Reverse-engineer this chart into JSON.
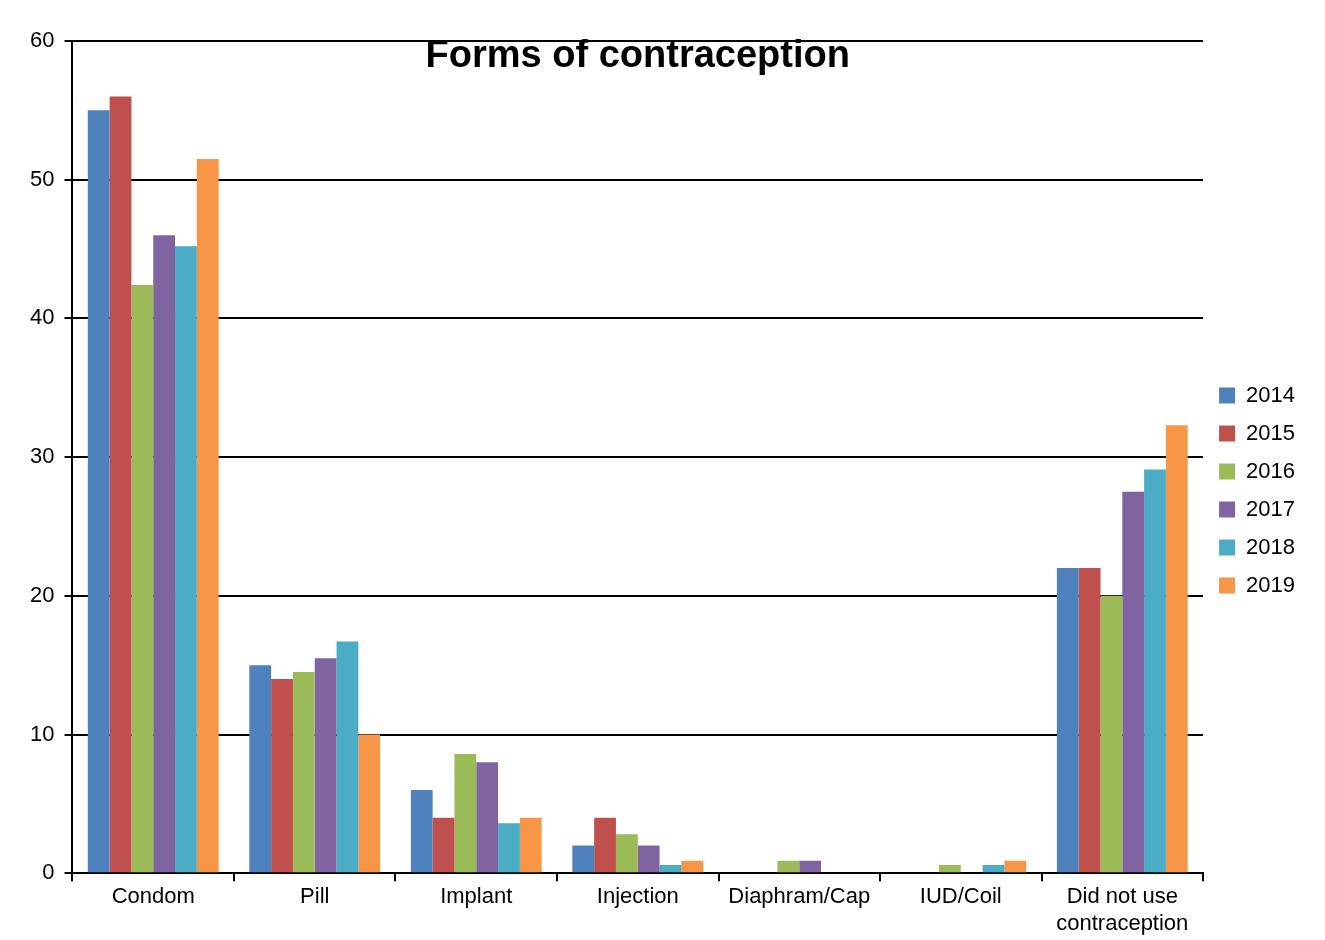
{
  "chart_data": {
    "type": "bar",
    "title": "Forms of contraception",
    "categories": [
      "Condom",
      "Pill",
      "Implant",
      "Injection",
      "Diaphram/Cap",
      "IUD/Coil",
      "Did not use contraception"
    ],
    "series": [
      {
        "name": "2014",
        "color": "#4f81bd",
        "values": [
          55,
          15,
          6,
          2,
          null,
          null,
          22
        ]
      },
      {
        "name": "2015",
        "color": "#c0504d",
        "values": [
          56,
          14,
          4,
          4,
          null,
          null,
          22
        ]
      },
      {
        "name": "2016",
        "color": "#9bbb59",
        "values": [
          42.4,
          14.5,
          8.6,
          2.8,
          0.9,
          0.6,
          20
        ]
      },
      {
        "name": "2017",
        "color": "#8064a2",
        "values": [
          46,
          15.5,
          8,
          2,
          0.9,
          null,
          27.5
        ]
      },
      {
        "name": "2018",
        "color": "#4bacc6",
        "values": [
          45.2,
          16.7,
          3.6,
          0.6,
          null,
          0.6,
          29.1
        ]
      },
      {
        "name": "2019",
        "color": "#f79646",
        "values": [
          51.5,
          10,
          4,
          0.9,
          null,
          0.9,
          32.3
        ]
      }
    ],
    "ylim": [
      0,
      60
    ],
    "yticks": [
      0,
      10,
      20,
      30,
      40,
      50,
      60
    ],
    "grid": "y",
    "legend": "right"
  }
}
